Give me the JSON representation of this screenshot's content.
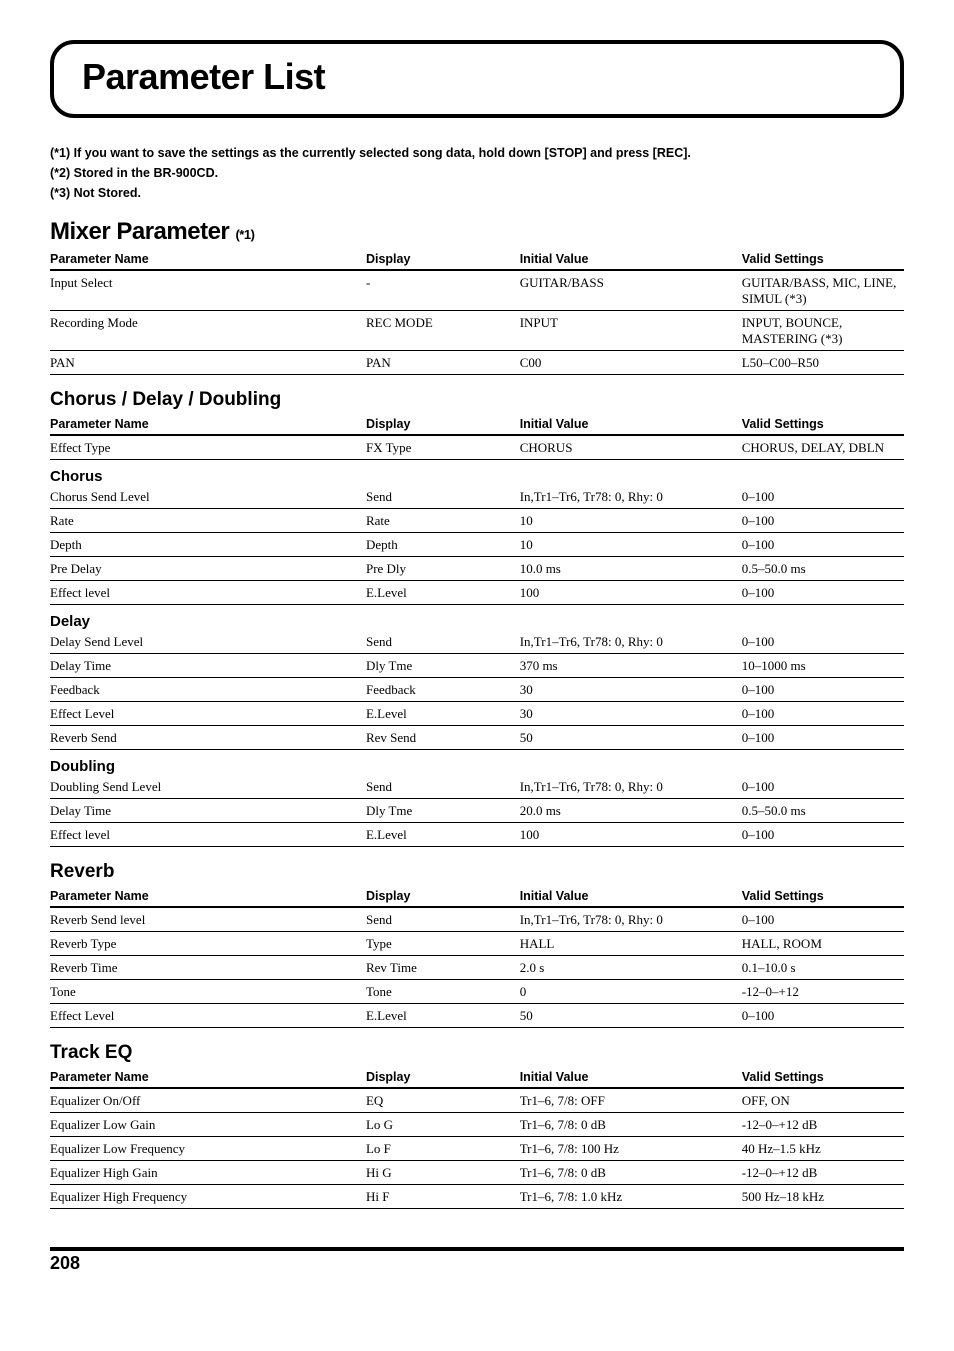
{
  "page_title": "Parameter List",
  "notes": [
    "(*1) If you want to save the settings as the currently selected song data, hold down [STOP] and press [REC].",
    "(*2) Stored in the BR-900CD.",
    "(*3) Not Stored."
  ],
  "headers": {
    "name": "Parameter Name",
    "display": "Display",
    "initial": "Initial Value",
    "valid": "Valid Settings"
  },
  "mixer": {
    "title": "Mixer Parameter",
    "suffix": "(*1)",
    "rows": [
      {
        "name": "Input Select",
        "display": "-",
        "initial": "GUITAR/BASS",
        "valid": "GUITAR/BASS, MIC, LINE, SIMUL (*3)"
      },
      {
        "name": "Recording Mode",
        "display": "REC MODE",
        "initial": "INPUT",
        "valid": "INPUT, BOUNCE, MASTERING (*3)"
      },
      {
        "name": "PAN",
        "display": "PAN",
        "initial": "C00",
        "valid": "L50–C00–R50"
      }
    ]
  },
  "chorus_section": {
    "title": "Chorus / Delay / Doubling",
    "top_rows": [
      {
        "name": "Effect Type",
        "display": "FX Type",
        "initial": "CHORUS",
        "valid": "CHORUS, DELAY, DBLN"
      }
    ],
    "groups": [
      {
        "title": "Chorus",
        "rows": [
          {
            "name": "Chorus Send Level",
            "display": "Send",
            "initial": "In,Tr1–Tr6, Tr78: 0, Rhy: 0",
            "valid": "0–100"
          },
          {
            "name": "Rate",
            "display": "Rate",
            "initial": "10",
            "valid": "0–100"
          },
          {
            "name": "Depth",
            "display": "Depth",
            "initial": "10",
            "valid": "0–100"
          },
          {
            "name": "Pre Delay",
            "display": "Pre Dly",
            "initial": "10.0 ms",
            "valid": "0.5–50.0 ms"
          },
          {
            "name": "Effect level",
            "display": "E.Level",
            "initial": "100",
            "valid": "0–100"
          }
        ]
      },
      {
        "title": "Delay",
        "rows": [
          {
            "name": "Delay Send Level",
            "display": "Send",
            "initial": "In,Tr1–Tr6, Tr78: 0, Rhy: 0",
            "valid": "0–100"
          },
          {
            "name": "Delay Time",
            "display": "Dly Tme",
            "initial": "370 ms",
            "valid": "10–1000 ms"
          },
          {
            "name": "Feedback",
            "display": "Feedback",
            "initial": "30",
            "valid": "0–100"
          },
          {
            "name": "Effect Level",
            "display": "E.Level",
            "initial": "30",
            "valid": "0–100"
          },
          {
            "name": "Reverb Send",
            "display": "Rev Send",
            "initial": "50",
            "valid": "0–100"
          }
        ]
      },
      {
        "title": "Doubling",
        "rows": [
          {
            "name": "Doubling Send Level",
            "display": "Send",
            "initial": "In,Tr1–Tr6, Tr78: 0, Rhy: 0",
            "valid": "0–100"
          },
          {
            "name": "Delay Time",
            "display": "Dly Tme",
            "initial": "20.0 ms",
            "valid": "0.5–50.0 ms"
          },
          {
            "name": "Effect level",
            "display": "E.Level",
            "initial": "100",
            "valid": "0–100"
          }
        ]
      }
    ]
  },
  "reverb": {
    "title": "Reverb",
    "rows": [
      {
        "name": "Reverb Send level",
        "display": "Send",
        "initial": "In,Tr1–Tr6, Tr78: 0, Rhy: 0",
        "valid": "0–100"
      },
      {
        "name": "Reverb Type",
        "display": "Type",
        "initial": "HALL",
        "valid": "HALL, ROOM"
      },
      {
        "name": "Reverb Time",
        "display": "Rev Time",
        "initial": "2.0 s",
        "valid": "0.1–10.0 s"
      },
      {
        "name": "Tone",
        "display": "Tone",
        "initial": "0",
        "valid": "-12–0–+12"
      },
      {
        "name": "Effect Level",
        "display": "E.Level",
        "initial": "50",
        "valid": "0–100"
      }
    ]
  },
  "track_eq": {
    "title": "Track EQ",
    "rows": [
      {
        "name": "Equalizer On/Off",
        "display": "EQ",
        "initial": "Tr1–6, 7/8: OFF",
        "valid": "OFF, ON"
      },
      {
        "name": "Equalizer Low Gain",
        "display": "Lo G",
        "initial": "Tr1–6, 7/8: 0 dB",
        "valid": "-12–0–+12 dB"
      },
      {
        "name": "Equalizer Low Frequency",
        "display": "Lo F",
        "initial": "Tr1–6, 7/8: 100 Hz",
        "valid": "40 Hz–1.5 kHz"
      },
      {
        "name": "Equalizer High Gain",
        "display": "Hi G",
        "initial": "Tr1–6, 7/8: 0 dB",
        "valid": "-12–0–+12 dB"
      },
      {
        "name": "Equalizer High Frequency",
        "display": "Hi F",
        "initial": "Tr1–6, 7/8: 1.0 kHz",
        "valid": "500 Hz–18 kHz"
      }
    ]
  },
  "page_number": "208"
}
